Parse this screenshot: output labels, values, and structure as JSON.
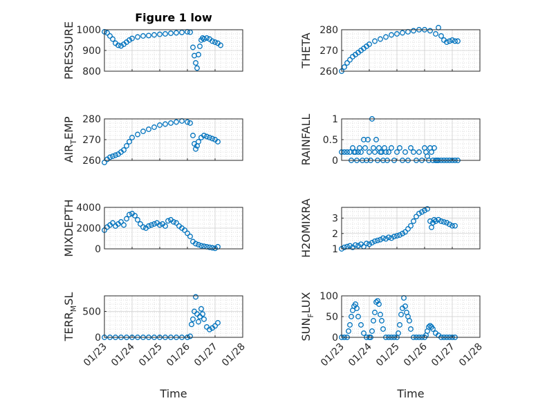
{
  "figure": {
    "title": "Figure 1 low",
    "xlabel": "Time"
  },
  "chart_data": [
    {
      "type": "scatter",
      "ylabel": "PRESSURE",
      "ylim": [
        800,
        1000
      ],
      "yticks": [
        "800",
        "900",
        "1000"
      ],
      "xlim": [
        0,
        5
      ],
      "xticks": [
        "01/23",
        "01/24",
        "01/25",
        "01/26",
        "01/27",
        "01/28"
      ],
      "grid": true,
      "color": "#0072BD",
      "series": [
        {
          "x": [
            0.0,
            0.1,
            0.2,
            0.3,
            0.4,
            0.5,
            0.6,
            0.7,
            0.8,
            0.9,
            1.0,
            1.2,
            1.4,
            1.6,
            1.8,
            2.0,
            2.2,
            2.4,
            2.6,
            2.8,
            3.0,
            3.1,
            3.2,
            3.25,
            3.3,
            3.35,
            3.4,
            3.45,
            3.5,
            3.55,
            3.6,
            3.7,
            3.8,
            3.9,
            4.0,
            4.1,
            4.2
          ],
          "y": [
            990,
            985,
            970,
            955,
            935,
            925,
            922,
            930,
            940,
            950,
            958,
            965,
            970,
            972,
            975,
            978,
            980,
            983,
            985,
            987,
            990,
            988,
            915,
            875,
            840,
            815,
            880,
            920,
            950,
            960,
            955,
            960,
            955,
            945,
            940,
            935,
            925
          ]
        }
      ]
    },
    {
      "type": "scatter",
      "ylabel": "THETA",
      "ylim": [
        260,
        280
      ],
      "yticks": [
        "260",
        "270",
        "280"
      ],
      "xlim": [
        0,
        5
      ],
      "xticks": [
        "01/23",
        "01/24",
        "01/25",
        "01/26",
        "01/27",
        "01/28"
      ],
      "grid": true,
      "color": "#0072BD",
      "series": [
        {
          "x": [
            0.0,
            0.1,
            0.2,
            0.3,
            0.4,
            0.5,
            0.6,
            0.7,
            0.8,
            0.9,
            1.0,
            1.2,
            1.4,
            1.6,
            1.8,
            2.0,
            2.2,
            2.4,
            2.6,
            2.8,
            3.0,
            3.2,
            3.4,
            3.5,
            3.6,
            3.7,
            3.8,
            3.9,
            4.0,
            4.1,
            4.2
          ],
          "y": [
            260,
            262,
            264,
            265.5,
            267,
            268,
            269,
            270,
            271,
            272,
            273,
            274.5,
            275.5,
            276.5,
            277.5,
            278,
            278.5,
            279,
            279.5,
            280,
            280,
            279.5,
            278,
            281,
            277,
            275,
            274,
            274.5,
            275,
            274.5,
            274.5
          ]
        }
      ]
    },
    {
      "type": "scatter",
      "ylabel": "AIR",
      "ylabel_sub": "T",
      "ylabel_rest": "EMP",
      "ylim": [
        260,
        280
      ],
      "yticks": [
        "260",
        "270",
        "280"
      ],
      "xlim": [
        0,
        5
      ],
      "xticks": [
        "01/23",
        "01/24",
        "01/25",
        "01/26",
        "01/27",
        "01/28"
      ],
      "grid": true,
      "color": "#0072BD",
      "series": [
        {
          "x": [
            0.0,
            0.1,
            0.2,
            0.3,
            0.4,
            0.5,
            0.6,
            0.7,
            0.8,
            0.9,
            1.0,
            1.2,
            1.4,
            1.6,
            1.8,
            2.0,
            2.2,
            2.4,
            2.6,
            2.8,
            3.0,
            3.1,
            3.2,
            3.25,
            3.3,
            3.35,
            3.4,
            3.5,
            3.6,
            3.7,
            3.8,
            3.9,
            4.0,
            4.1
          ],
          "y": [
            259,
            260.5,
            261.5,
            262,
            262.5,
            263,
            264,
            265,
            267,
            269,
            271,
            272.5,
            274,
            275,
            276,
            277,
            277.5,
            278,
            278.5,
            279,
            278.5,
            278,
            272,
            268,
            265.5,
            267,
            269,
            271,
            272,
            271.5,
            271,
            270.5,
            270,
            269
          ]
        }
      ]
    },
    {
      "type": "scatter",
      "ylabel": "RAINFALL",
      "ylim": [
        0,
        1
      ],
      "yticks": [
        "0",
        "0.5",
        "1"
      ],
      "xlim": [
        0,
        5
      ],
      "xticks": [
        "01/23",
        "01/24",
        "01/25",
        "01/26",
        "01/27",
        "01/28"
      ],
      "grid": true,
      "color": "#0072BD",
      "series": [
        {
          "x": [
            0.0,
            0.1,
            0.2,
            0.3,
            0.35,
            0.4,
            0.45,
            0.5,
            0.55,
            0.6,
            0.65,
            0.7,
            0.75,
            0.8,
            0.85,
            0.9,
            0.95,
            1.0,
            1.05,
            1.1,
            1.15,
            1.2,
            1.25,
            1.3,
            1.35,
            1.4,
            1.45,
            1.5,
            1.55,
            1.6,
            1.65,
            1.7,
            1.8,
            1.9,
            2.0,
            2.1,
            2.2,
            2.3,
            2.4,
            2.5,
            2.6,
            2.7,
            2.8,
            2.9,
            3.0,
            3.05,
            3.1,
            3.15,
            3.2,
            3.25,
            3.3,
            3.35,
            3.4,
            3.45,
            3.5,
            3.6,
            3.7,
            3.8,
            3.9,
            4.0,
            4.1,
            4.2
          ],
          "y": [
            0.2,
            0.2,
            0.2,
            0.2,
            0.0,
            0.3,
            0.2,
            0.2,
            0.0,
            0.2,
            0.3,
            0.2,
            0.0,
            0.5,
            0.3,
            0.0,
            0.5,
            0.2,
            0.0,
            1.0,
            0.3,
            0.2,
            0.5,
            0.0,
            0.3,
            0.2,
            0.2,
            0.0,
            0.3,
            0.2,
            0.0,
            0.2,
            0.3,
            0.0,
            0.2,
            0.3,
            0.0,
            0.2,
            0.0,
            0.3,
            0.2,
            0.0,
            0.2,
            0.0,
            0.3,
            0.2,
            0.1,
            0.0,
            0.3,
            0.2,
            0.0,
            0.3,
            0.0,
            0.0,
            0.0,
            0.0,
            0.0,
            0.0,
            0.0,
            0.0,
            0.0,
            0.0
          ]
        }
      ]
    },
    {
      "type": "scatter",
      "ylabel": "MIXDEPTH",
      "ylim": [
        0,
        4000
      ],
      "yticks": [
        "0",
        "2000",
        "4000"
      ],
      "xlim": [
        0,
        5
      ],
      "xticks": [
        "01/23",
        "01/24",
        "01/25",
        "01/26",
        "01/27",
        "01/28"
      ],
      "grid": true,
      "color": "#0072BD",
      "series": [
        {
          "x": [
            0.0,
            0.1,
            0.2,
            0.3,
            0.4,
            0.5,
            0.6,
            0.7,
            0.8,
            0.9,
            1.0,
            1.1,
            1.2,
            1.3,
            1.4,
            1.5,
            1.6,
            1.7,
            1.8,
            1.9,
            2.0,
            2.1,
            2.2,
            2.3,
            2.4,
            2.5,
            2.6,
            2.7,
            2.8,
            2.9,
            3.0,
            3.1,
            3.2,
            3.3,
            3.4,
            3.5,
            3.6,
            3.7,
            3.8,
            3.9,
            4.0,
            4.1
          ],
          "y": [
            1800,
            2100,
            2300,
            2500,
            2200,
            2400,
            2600,
            2300,
            2900,
            3300,
            3400,
            3200,
            2800,
            2400,
            2100,
            2000,
            2200,
            2300,
            2400,
            2500,
            2300,
            2400,
            2200,
            2700,
            2800,
            2600,
            2500,
            2200,
            2000,
            1800,
            1500,
            1200,
            700,
            500,
            400,
            300,
            250,
            200,
            150,
            100,
            50,
            200
          ]
        }
      ]
    },
    {
      "type": "scatter",
      "ylabel": "H2OMIXRA",
      "ylim": [
        1,
        3.7
      ],
      "yticks": [
        "1",
        "2",
        "3"
      ],
      "xlim": [
        0,
        5
      ],
      "xticks": [
        "01/23",
        "01/24",
        "01/25",
        "01/26",
        "01/27",
        "01/28"
      ],
      "grid": true,
      "color": "#0072BD",
      "series": [
        {
          "x": [
            0.0,
            0.1,
            0.2,
            0.3,
            0.4,
            0.5,
            0.6,
            0.7,
            0.8,
            0.9,
            1.0,
            1.1,
            1.2,
            1.3,
            1.4,
            1.5,
            1.6,
            1.7,
            1.8,
            1.9,
            2.0,
            2.1,
            2.2,
            2.3,
            2.4,
            2.5,
            2.6,
            2.7,
            2.8,
            2.9,
            3.0,
            3.1,
            3.2,
            3.25,
            3.3,
            3.35,
            3.4,
            3.5,
            3.6,
            3.7,
            3.8,
            3.9,
            4.0,
            4.1
          ],
          "y": [
            1.0,
            1.1,
            1.15,
            1.2,
            1.1,
            1.25,
            1.2,
            1.3,
            1.15,
            1.35,
            1.3,
            1.4,
            1.5,
            1.55,
            1.6,
            1.7,
            1.65,
            1.75,
            1.7,
            1.8,
            1.85,
            1.9,
            2.0,
            2.1,
            2.3,
            2.5,
            2.8,
            3.1,
            3.3,
            3.4,
            3.5,
            3.6,
            2.8,
            2.4,
            2.7,
            2.9,
            2.8,
            2.9,
            2.8,
            2.75,
            2.7,
            2.6,
            2.5,
            2.5
          ]
        }
      ]
    },
    {
      "type": "scatter",
      "ylabel": "TERR",
      "ylabel_sub": "M",
      "ylabel_rest": "SL",
      "ylim": [
        0,
        800
      ],
      "yticks": [
        "0",
        "500"
      ],
      "xlim": [
        0,
        5
      ],
      "xticks": [
        "01/23",
        "01/24",
        "01/25",
        "01/26",
        "01/27",
        "01/28"
      ],
      "xticklabels_visible": true,
      "grid": true,
      "color": "#0072BD",
      "series": [
        {
          "x": [
            0.0,
            0.2,
            0.4,
            0.6,
            0.8,
            1.0,
            1.2,
            1.4,
            1.6,
            1.8,
            2.0,
            2.2,
            2.4,
            2.6,
            2.8,
            3.0,
            3.1,
            3.15,
            3.2,
            3.25,
            3.3,
            3.35,
            3.4,
            3.45,
            3.5,
            3.55,
            3.6,
            3.7,
            3.8,
            3.9,
            4.0,
            4.1
          ],
          "y": [
            0,
            0,
            0,
            0,
            0,
            0,
            0,
            0,
            0,
            0,
            0,
            0,
            0,
            0,
            0,
            0,
            20,
            250,
            350,
            500,
            780,
            450,
            300,
            400,
            550,
            450,
            350,
            200,
            150,
            180,
            220,
            280
          ]
        }
      ]
    },
    {
      "type": "scatter",
      "ylabel": "SUN",
      "ylabel_sub": "F",
      "ylabel_rest": "LUX",
      "ylim": [
        0,
        100
      ],
      "yticks": [
        "0",
        "50",
        "100"
      ],
      "xlim": [
        0,
        5
      ],
      "xticks": [
        "01/23",
        "01/24",
        "01/25",
        "01/26",
        "01/27",
        "01/28"
      ],
      "xticklabels_visible": true,
      "grid": true,
      "color": "#0072BD",
      "series": [
        {
          "x": [
            0.0,
            0.1,
            0.2,
            0.25,
            0.3,
            0.35,
            0.4,
            0.45,
            0.5,
            0.55,
            0.6,
            0.7,
            0.8,
            0.9,
            1.0,
            1.05,
            1.1,
            1.15,
            1.2,
            1.25,
            1.3,
            1.35,
            1.4,
            1.45,
            1.5,
            1.6,
            1.7,
            1.8,
            1.9,
            2.0,
            2.05,
            2.1,
            2.15,
            2.2,
            2.25,
            2.3,
            2.35,
            2.4,
            2.45,
            2.5,
            2.6,
            2.7,
            2.8,
            2.9,
            3.0,
            3.05,
            3.1,
            3.15,
            3.2,
            3.25,
            3.3,
            3.4,
            3.5,
            3.6,
            3.7,
            3.8,
            3.9,
            4.0,
            4.1
          ],
          "y": [
            0,
            0,
            0,
            15,
            30,
            50,
            65,
            75,
            80,
            70,
            50,
            30,
            10,
            0,
            0,
            0,
            15,
            40,
            60,
            85,
            88,
            80,
            55,
            40,
            20,
            0,
            0,
            0,
            0,
            0,
            10,
            30,
            55,
            70,
            95,
            75,
            60,
            50,
            40,
            20,
            0,
            0,
            0,
            0,
            0,
            5,
            15,
            25,
            28,
            25,
            20,
            10,
            5,
            0,
            0,
            0,
            0,
            0,
            0
          ]
        }
      ]
    }
  ]
}
